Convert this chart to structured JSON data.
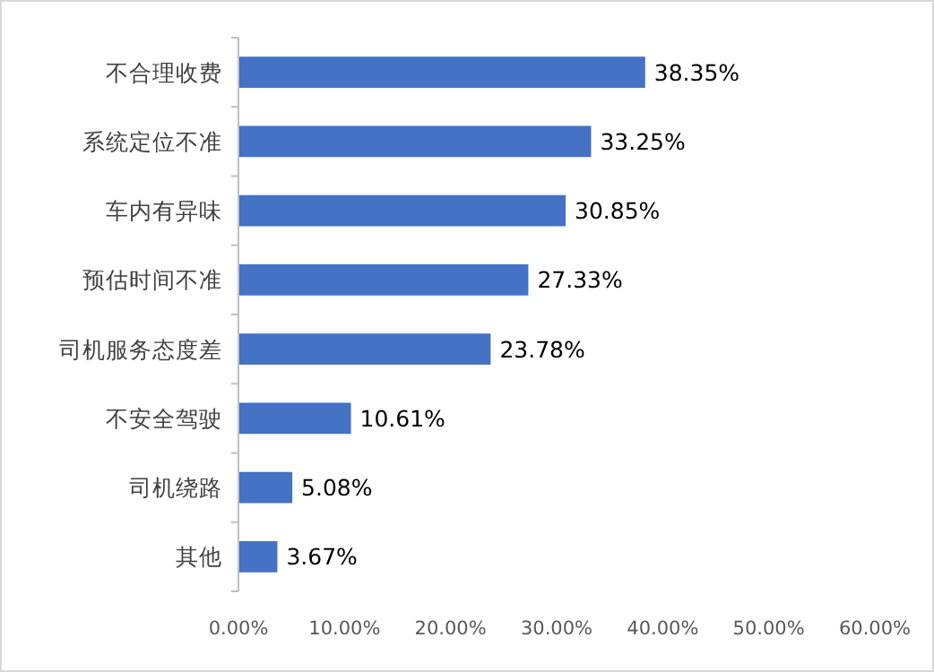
{
  "chart_data": {
    "type": "bar",
    "orientation": "horizontal",
    "categories": [
      "不合理收费",
      "系统定位不准",
      "车内有异味",
      "预估时间不准",
      "司机服务态度差",
      "不安全驾驶",
      "司机绕路",
      "其他"
    ],
    "values": [
      38.35,
      33.25,
      30.85,
      27.33,
      23.78,
      10.61,
      5.08,
      3.67
    ],
    "value_labels": [
      "38.35%",
      "33.25%",
      "30.85%",
      "27.33%",
      "23.78%",
      "10.61%",
      "5.08%",
      "3.67%"
    ],
    "color": "#4472c4",
    "xlim": [
      0,
      60
    ],
    "xticks": [
      {
        "value": 0,
        "label": "0.00%"
      },
      {
        "value": 10,
        "label": "10.00%"
      },
      {
        "value": 20,
        "label": "20.00%"
      },
      {
        "value": 30,
        "label": "30.00%"
      },
      {
        "value": 40,
        "label": "40.00%"
      },
      {
        "value": 50,
        "label": "50.00%"
      },
      {
        "value": 60,
        "label": "60.00%"
      }
    ],
    "grid": false
  }
}
